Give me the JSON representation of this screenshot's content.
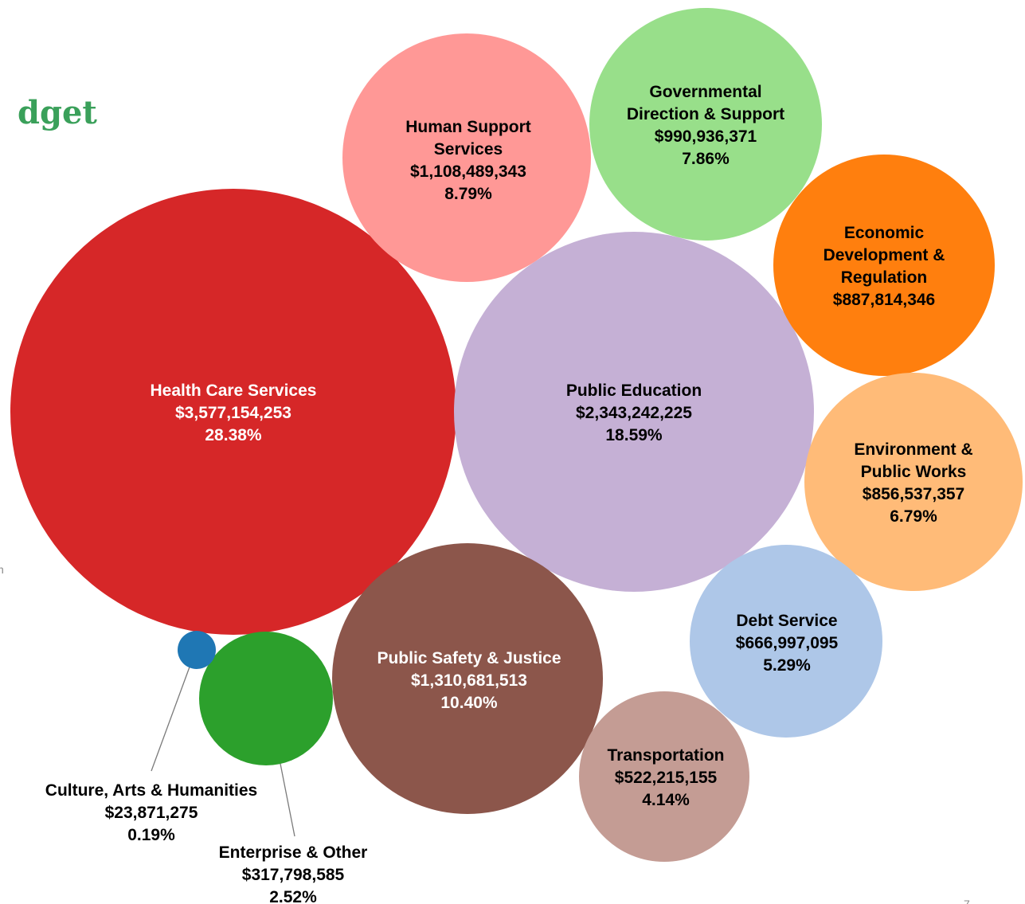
{
  "page": {
    "title_fragment": "dget",
    "side_fragment": "n",
    "page_number": "7"
  },
  "chart_data": {
    "type": "bubble",
    "title": "",
    "series": [
      {
        "id": "health",
        "name": "Health Care Services",
        "amount": 3577154253,
        "amount_label": "$3,577,154,253",
        "percent": 28.38,
        "percent_label": "28.38%",
        "color": "#d62728",
        "text_color": "#ffffff"
      },
      {
        "id": "education",
        "name": "Public Education",
        "amount": 2343242225,
        "amount_label": "$2,343,242,225",
        "percent": 18.59,
        "percent_label": "18.59%",
        "color": "#c5b0d5",
        "text_color": "#000000"
      },
      {
        "id": "safety",
        "name": "Public Safety & Justice",
        "amount": 1310681513,
        "amount_label": "$1,310,681,513",
        "percent": 10.4,
        "percent_label": "10.40%",
        "color": "#8c564b",
        "text_color": "#ffffff"
      },
      {
        "id": "human",
        "name": "Human Support Services",
        "amount": 1108489343,
        "amount_label": "$1,108,489,343",
        "percent": 8.79,
        "percent_label": "8.79%",
        "color": "#ff9896",
        "text_color": "#000000"
      },
      {
        "id": "governmental",
        "name": "Governmental Direction & Support",
        "amount": 990936371,
        "amount_label": "$990,936,371",
        "percent": 7.86,
        "percent_label": "7.86%",
        "color": "#98df8a",
        "text_color": "#000000"
      },
      {
        "id": "economic",
        "name": "Economic Development & Regulation",
        "amount": 887814346,
        "amount_label": "$887,814,346",
        "percent": null,
        "percent_label": "",
        "color": "#ff7f0e",
        "text_color": "#000000"
      },
      {
        "id": "environment",
        "name": "Environment & Public Works",
        "amount": 856537357,
        "amount_label": "$856,537,357",
        "percent": 6.79,
        "percent_label": "6.79%",
        "color": "#ffbb78",
        "text_color": "#000000"
      },
      {
        "id": "debt",
        "name": "Debt Service",
        "amount": 666997095,
        "amount_label": "$666,997,095",
        "percent": 5.29,
        "percent_label": "5.29%",
        "color": "#aec7e8",
        "text_color": "#000000"
      },
      {
        "id": "transportation",
        "name": "Transportation",
        "amount": 522215155,
        "amount_label": "$522,215,155",
        "percent": 4.14,
        "percent_label": "4.14%",
        "color": "#c49c94",
        "text_color": "#000000"
      },
      {
        "id": "enterprise",
        "name": "Enterprise & Other",
        "amount": 317798585,
        "amount_label": "$317,798,585",
        "percent": 2.52,
        "percent_label": "2.52%",
        "color": "#2ca02c",
        "text_color": "#000000"
      },
      {
        "id": "culture",
        "name": "Culture, Arts & Humanities",
        "amount": 23871275,
        "amount_label": "$23,871,275",
        "percent": 0.19,
        "percent_label": "0.19%",
        "color": "#1f77b4",
        "text_color": "#000000"
      }
    ]
  }
}
